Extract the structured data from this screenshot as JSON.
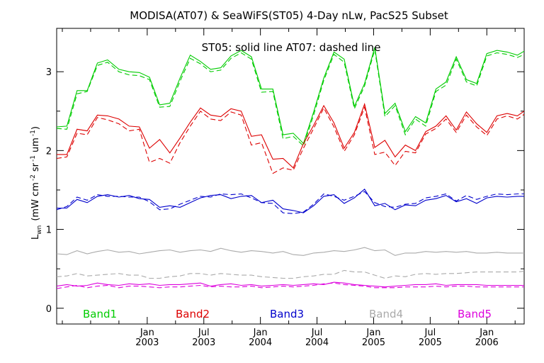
{
  "chart_data": {
    "type": "line",
    "title": "MODISA(AT07) & SeaWiFS(ST05) 4-Day nLw, PacS25 Subset",
    "ylabel": "L_wn (mW cm^-2 sr^-1 um^-1)",
    "ylabel_main": "L",
    "ylabel_sub": "wn",
    "ylabel_rest": "(mW cm",
    "ylabel_sup1": "-2",
    "ylabel_mid": "sr",
    "ylabel_sup2": "-1",
    "ylabel_mid2": "um",
    "ylabel_sup3": "-1",
    "ylabel_end": ")",
    "annotation": "ST05: solid line   AT07: dashed line",
    "xlim": [
      2002.2,
      2006.33
    ],
    "ylim": [
      -0.2,
      3.55
    ],
    "yticks": [
      0,
      1,
      2,
      3
    ],
    "xticks": [
      {
        "x": 2003.0,
        "label1": "Jan",
        "label2": "2003"
      },
      {
        "x": 2003.5,
        "label1": "Jul",
        "label2": "2003"
      },
      {
        "x": 2004.0,
        "label1": "Jan",
        "label2": "2004"
      },
      {
        "x": 2004.5,
        "label1": "Jul",
        "label2": "2004"
      },
      {
        "x": 2005.0,
        "label1": "Jan",
        "label2": "2005"
      },
      {
        "x": 2005.5,
        "label1": "Jul",
        "label2": "2005"
      },
      {
        "x": 2006.0,
        "label1": "Jan",
        "label2": "2006"
      }
    ],
    "minor_xticks": [
      2002.25,
      2002.5,
      2002.75,
      2003.25,
      2003.75,
      2004.25,
      2004.75,
      2005.25,
      2005.75,
      2006.25
    ],
    "minor_yticks": [
      0.5,
      1.5,
      2.5
    ],
    "x": [
      2002.2,
      2002.29,
      2002.38,
      2002.47,
      2002.56,
      2002.65,
      2002.75,
      2002.84,
      2002.93,
      2003.02,
      2003.11,
      2003.2,
      2003.29,
      2003.38,
      2003.47,
      2003.56,
      2003.65,
      2003.74,
      2003.83,
      2003.92,
      2004.01,
      2004.11,
      2004.2,
      2004.29,
      2004.38,
      2004.47,
      2004.56,
      2004.65,
      2004.74,
      2004.83,
      2004.92,
      2005.01,
      2005.1,
      2005.19,
      2005.28,
      2005.37,
      2005.46,
      2005.55,
      2005.64,
      2005.73,
      2005.82,
      2005.91,
      2006.0,
      2006.09,
      2006.18,
      2006.27,
      2006.33
    ],
    "series": [
      {
        "name": "Band1",
        "color": "#00cc00",
        "solid": [
          2.3,
          2.31,
          2.76,
          2.76,
          3.11,
          3.15,
          3.03,
          3.0,
          2.99,
          2.93,
          2.58,
          2.6,
          2.92,
          3.21,
          3.13,
          3.03,
          3.05,
          3.2,
          3.27,
          3.19,
          2.78,
          2.78,
          2.2,
          2.22,
          2.09,
          2.49,
          2.92,
          3.25,
          3.16,
          2.56,
          2.85,
          3.31,
          2.47,
          2.6,
          2.24,
          2.43,
          2.35,
          2.78,
          2.87,
          3.19,
          2.9,
          2.85,
          3.23,
          3.27,
          3.25,
          3.21,
          3.26
        ],
        "dashed": [
          2.28,
          2.27,
          2.72,
          2.75,
          3.08,
          3.12,
          3.0,
          2.96,
          2.95,
          2.9,
          2.55,
          2.56,
          2.88,
          3.17,
          3.1,
          3.0,
          3.02,
          3.17,
          3.24,
          3.16,
          2.74,
          2.75,
          2.15,
          2.18,
          2.06,
          2.45,
          2.89,
          3.22,
          3.12,
          2.53,
          2.82,
          3.28,
          2.43,
          2.57,
          2.2,
          2.4,
          2.31,
          2.75,
          2.83,
          3.16,
          2.87,
          2.82,
          3.2,
          3.24,
          3.22,
          3.18,
          3.22
        ]
      },
      {
        "name": "Band2",
        "color": "#dd0000",
        "solid": [
          1.95,
          1.95,
          2.27,
          2.25,
          2.45,
          2.44,
          2.4,
          2.31,
          2.3,
          2.03,
          2.14,
          1.97,
          2.16,
          2.36,
          2.54,
          2.45,
          2.43,
          2.53,
          2.5,
          2.18,
          2.2,
          1.89,
          1.9,
          1.78,
          2.09,
          2.32,
          2.57,
          2.35,
          2.03,
          2.23,
          2.59,
          2.04,
          2.13,
          1.92,
          2.07,
          2.0,
          2.24,
          2.31,
          2.44,
          2.26,
          2.49,
          2.34,
          2.23,
          2.44,
          2.47,
          2.44,
          2.5
        ],
        "dashed": [
          1.9,
          1.92,
          2.22,
          2.2,
          2.42,
          2.39,
          2.34,
          2.25,
          2.27,
          1.85,
          1.9,
          1.84,
          2.1,
          2.31,
          2.5,
          2.4,
          2.38,
          2.49,
          2.45,
          2.07,
          2.1,
          1.71,
          1.78,
          1.75,
          2.03,
          2.28,
          2.54,
          2.3,
          1.99,
          2.2,
          2.55,
          1.95,
          1.98,
          1.81,
          1.99,
          1.97,
          2.21,
          2.28,
          2.4,
          2.23,
          2.45,
          2.3,
          2.19,
          2.4,
          2.44,
          2.4,
          2.46
        ]
      },
      {
        "name": "Band3",
        "color": "#0000cc",
        "solid": [
          1.27,
          1.27,
          1.38,
          1.34,
          1.42,
          1.44,
          1.41,
          1.43,
          1.39,
          1.38,
          1.28,
          1.3,
          1.28,
          1.34,
          1.4,
          1.43,
          1.44,
          1.39,
          1.42,
          1.43,
          1.34,
          1.37,
          1.26,
          1.24,
          1.21,
          1.3,
          1.42,
          1.44,
          1.33,
          1.4,
          1.51,
          1.3,
          1.33,
          1.25,
          1.31,
          1.3,
          1.37,
          1.39,
          1.43,
          1.35,
          1.39,
          1.33,
          1.4,
          1.42,
          1.41,
          1.42,
          1.42
        ],
        "dashed": [
          1.25,
          1.29,
          1.41,
          1.37,
          1.44,
          1.42,
          1.42,
          1.41,
          1.41,
          1.35,
          1.25,
          1.26,
          1.32,
          1.37,
          1.42,
          1.41,
          1.45,
          1.44,
          1.45,
          1.4,
          1.34,
          1.33,
          1.21,
          1.2,
          1.22,
          1.32,
          1.45,
          1.42,
          1.37,
          1.42,
          1.48,
          1.34,
          1.29,
          1.28,
          1.32,
          1.33,
          1.4,
          1.42,
          1.45,
          1.36,
          1.43,
          1.38,
          1.42,
          1.45,
          1.44,
          1.45,
          1.45
        ]
      },
      {
        "name": "Band4",
        "color": "#aaaaaa",
        "solid": [
          0.69,
          0.68,
          0.73,
          0.69,
          0.72,
          0.74,
          0.71,
          0.72,
          0.69,
          0.71,
          0.73,
          0.74,
          0.71,
          0.73,
          0.74,
          0.72,
          0.76,
          0.73,
          0.71,
          0.73,
          0.72,
          0.7,
          0.72,
          0.68,
          0.67,
          0.7,
          0.71,
          0.73,
          0.72,
          0.74,
          0.77,
          0.73,
          0.74,
          0.67,
          0.7,
          0.7,
          0.72,
          0.71,
          0.72,
          0.71,
          0.72,
          0.7,
          0.7,
          0.71,
          0.7,
          0.7,
          0.7
        ],
        "dashed": [
          0.4,
          0.41,
          0.44,
          0.41,
          0.42,
          0.43,
          0.44,
          0.42,
          0.42,
          0.38,
          0.38,
          0.4,
          0.41,
          0.44,
          0.44,
          0.42,
          0.44,
          0.43,
          0.42,
          0.42,
          0.4,
          0.39,
          0.38,
          0.38,
          0.4,
          0.41,
          0.43,
          0.43,
          0.48,
          0.46,
          0.46,
          0.42,
          0.38,
          0.41,
          0.4,
          0.43,
          0.44,
          0.43,
          0.44,
          0.44,
          0.45,
          0.46,
          0.46,
          0.46,
          0.46,
          0.46,
          0.47
        ]
      },
      {
        "name": "Band5",
        "color": "#dd00dd",
        "solid": [
          0.28,
          0.3,
          0.28,
          0.29,
          0.32,
          0.3,
          0.29,
          0.31,
          0.3,
          0.31,
          0.29,
          0.3,
          0.3,
          0.31,
          0.32,
          0.28,
          0.3,
          0.31,
          0.29,
          0.3,
          0.28,
          0.29,
          0.3,
          0.29,
          0.3,
          0.31,
          0.3,
          0.33,
          0.32,
          0.3,
          0.29,
          0.28,
          0.27,
          0.28,
          0.29,
          0.3,
          0.3,
          0.31,
          0.29,
          0.3,
          0.3,
          0.3,
          0.29,
          0.29,
          0.29,
          0.29,
          0.29
        ],
        "dashed": [
          0.25,
          0.27,
          0.29,
          0.26,
          0.28,
          0.29,
          0.26,
          0.28,
          0.28,
          0.27,
          0.26,
          0.27,
          0.27,
          0.28,
          0.29,
          0.27,
          0.28,
          0.27,
          0.27,
          0.28,
          0.26,
          0.27,
          0.28,
          0.27,
          0.28,
          0.29,
          0.31,
          0.32,
          0.3,
          0.29,
          0.28,
          0.26,
          0.26,
          0.26,
          0.27,
          0.27,
          0.27,
          0.28,
          0.27,
          0.28,
          0.28,
          0.27,
          0.27,
          0.27,
          0.27,
          0.27,
          0.27
        ]
      }
    ]
  }
}
